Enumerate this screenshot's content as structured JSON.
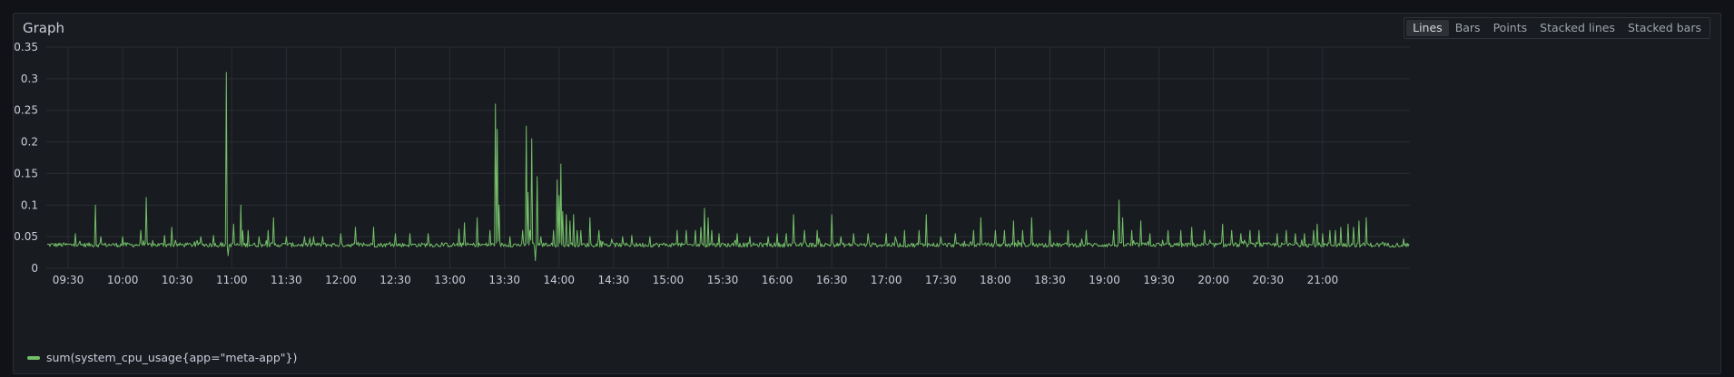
{
  "panel": {
    "title": "Graph"
  },
  "modes": [
    {
      "label": "Lines",
      "active": true
    },
    {
      "label": "Bars",
      "active": false
    },
    {
      "label": "Points",
      "active": false
    },
    {
      "label": "Stacked lines",
      "active": false
    },
    {
      "label": "Stacked bars",
      "active": false
    }
  ],
  "colors": {
    "series": "#73bf69",
    "grid": "#2a2d33",
    "text": "#ccccdc"
  },
  "chart_data": {
    "type": "line",
    "title": "",
    "xlabel": "",
    "ylabel": "",
    "ylim": [
      0,
      0.35
    ],
    "xlim_minutes": [
      558,
      1308
    ],
    "yticks": [
      {
        "value": 0,
        "label": "0"
      },
      {
        "value": 0.05,
        "label": "0.05"
      },
      {
        "value": 0.1,
        "label": "0.1"
      },
      {
        "value": 0.15,
        "label": "0.15"
      },
      {
        "value": 0.2,
        "label": "0.2"
      },
      {
        "value": 0.25,
        "label": "0.25"
      },
      {
        "value": 0.3,
        "label": "0.3"
      },
      {
        "value": 0.35,
        "label": "0.35"
      }
    ],
    "xticks": [
      "09:30",
      "10:00",
      "10:30",
      "11:00",
      "11:30",
      "12:00",
      "12:30",
      "13:00",
      "13:30",
      "14:00",
      "14:30",
      "15:00",
      "15:30",
      "16:00",
      "16:30",
      "17:00",
      "17:30",
      "18:00",
      "18:30",
      "19:00",
      "19:30",
      "20:00",
      "20:30",
      "21:00"
    ],
    "grid": true,
    "legend_position": "bottom-left",
    "series": [
      {
        "name": "sum(system_cpu_usage{app=\"meta-app\"})",
        "baseline": 0.037,
        "spikes": [
          [
            "09:34",
            0.055
          ],
          [
            "09:45",
            0.1
          ],
          [
            "09:48",
            0.05
          ],
          [
            "10:00",
            0.05
          ],
          [
            "10:10",
            0.06
          ],
          [
            "10:13",
            0.112
          ],
          [
            "10:23",
            0.052
          ],
          [
            "10:27",
            0.065
          ],
          [
            "10:43",
            0.05
          ],
          [
            "10:50",
            0.052
          ],
          [
            "10:57",
            0.31
          ],
          [
            "10:58",
            0.02
          ],
          [
            "11:01",
            0.07
          ],
          [
            "11:05",
            0.1
          ],
          [
            "11:06",
            0.06
          ],
          [
            "11:09",
            0.06
          ],
          [
            "11:15",
            0.05
          ],
          [
            "11:20",
            0.06
          ],
          [
            "11:23",
            0.08
          ],
          [
            "11:30",
            0.05
          ],
          [
            "11:40",
            0.05
          ],
          [
            "11:45",
            0.05
          ],
          [
            "11:50",
            0.05
          ],
          [
            "12:00",
            0.055
          ],
          [
            "12:08",
            0.065
          ],
          [
            "12:18",
            0.065
          ],
          [
            "12:30",
            0.055
          ],
          [
            "12:38",
            0.055
          ],
          [
            "12:48",
            0.055
          ],
          [
            "13:05",
            0.062
          ],
          [
            "13:08",
            0.072
          ],
          [
            "13:15",
            0.08
          ],
          [
            "13:22",
            0.06
          ],
          [
            "13:25",
            0.26
          ],
          [
            "13:26",
            0.22
          ],
          [
            "13:27",
            0.1
          ],
          [
            "13:33",
            0.05
          ],
          [
            "13:40",
            0.06
          ],
          [
            "13:42",
            0.225
          ],
          [
            "13:43",
            0.12
          ],
          [
            "13:44",
            0.06
          ],
          [
            "13:45",
            0.205
          ],
          [
            "13:46",
            0.04
          ],
          [
            "13:47",
            0.012
          ],
          [
            "13:48",
            0.145
          ],
          [
            "13:50",
            0.05
          ],
          [
            "13:53",
            0.04
          ],
          [
            "13:57",
            0.06
          ],
          [
            "13:59",
            0.14
          ],
          [
            "14:00",
            0.115
          ],
          [
            "14:01",
            0.165
          ],
          [
            "14:02",
            0.09
          ],
          [
            "14:04",
            0.085
          ],
          [
            "14:06",
            0.075
          ],
          [
            "14:08",
            0.085
          ],
          [
            "14:10",
            0.06
          ],
          [
            "14:12",
            0.06
          ],
          [
            "14:17",
            0.08
          ],
          [
            "14:22",
            0.06
          ],
          [
            "14:35",
            0.05
          ],
          [
            "14:40",
            0.052
          ],
          [
            "14:50",
            0.05
          ],
          [
            "15:05",
            0.06
          ],
          [
            "15:10",
            0.06
          ],
          [
            "15:15",
            0.06
          ],
          [
            "15:18",
            0.065
          ],
          [
            "15:20",
            0.095
          ],
          [
            "15:22",
            0.08
          ],
          [
            "15:24",
            0.06
          ],
          [
            "15:28",
            0.055
          ],
          [
            "15:38",
            0.055
          ],
          [
            "15:45",
            0.05
          ],
          [
            "15:55",
            0.05
          ],
          [
            "16:00",
            0.055
          ],
          [
            "16:05",
            0.055
          ],
          [
            "16:09",
            0.085
          ],
          [
            "16:15",
            0.06
          ],
          [
            "16:22",
            0.06
          ],
          [
            "16:30",
            0.085
          ],
          [
            "16:35",
            0.05
          ],
          [
            "16:42",
            0.055
          ],
          [
            "16:50",
            0.055
          ],
          [
            "17:00",
            0.055
          ],
          [
            "17:05",
            0.05
          ],
          [
            "17:10",
            0.06
          ],
          [
            "17:18",
            0.06
          ],
          [
            "17:22",
            0.085
          ],
          [
            "17:30",
            0.05
          ],
          [
            "17:38",
            0.055
          ],
          [
            "17:48",
            0.06
          ],
          [
            "17:52",
            0.08
          ],
          [
            "18:00",
            0.06
          ],
          [
            "18:05",
            0.06
          ],
          [
            "18:10",
            0.075
          ],
          [
            "18:15",
            0.06
          ],
          [
            "18:20",
            0.08
          ],
          [
            "18:30",
            0.06
          ],
          [
            "18:40",
            0.06
          ],
          [
            "18:50",
            0.06
          ],
          [
            "19:05",
            0.06
          ],
          [
            "19:08",
            0.108
          ],
          [
            "19:10",
            0.08
          ],
          [
            "19:15",
            0.06
          ],
          [
            "19:20",
            0.075
          ],
          [
            "19:25",
            0.055
          ],
          [
            "19:35",
            0.06
          ],
          [
            "19:42",
            0.06
          ],
          [
            "19:48",
            0.065
          ],
          [
            "19:55",
            0.06
          ],
          [
            "20:05",
            0.07
          ],
          [
            "20:10",
            0.06
          ],
          [
            "20:15",
            0.055
          ],
          [
            "20:20",
            0.06
          ],
          [
            "20:25",
            0.06
          ],
          [
            "20:35",
            0.055
          ],
          [
            "20:40",
            0.06
          ],
          [
            "20:45",
            0.055
          ],
          [
            "20:50",
            0.055
          ],
          [
            "20:55",
            0.06
          ],
          [
            "20:57",
            0.07
          ],
          [
            "21:00",
            0.055
          ],
          [
            "21:04",
            0.06
          ],
          [
            "21:07",
            0.06
          ],
          [
            "21:10",
            0.065
          ],
          [
            "21:14",
            0.07
          ],
          [
            "21:17",
            0.065
          ],
          [
            "21:20",
            0.075
          ],
          [
            "21:24",
            0.08
          ]
        ]
      }
    ]
  }
}
